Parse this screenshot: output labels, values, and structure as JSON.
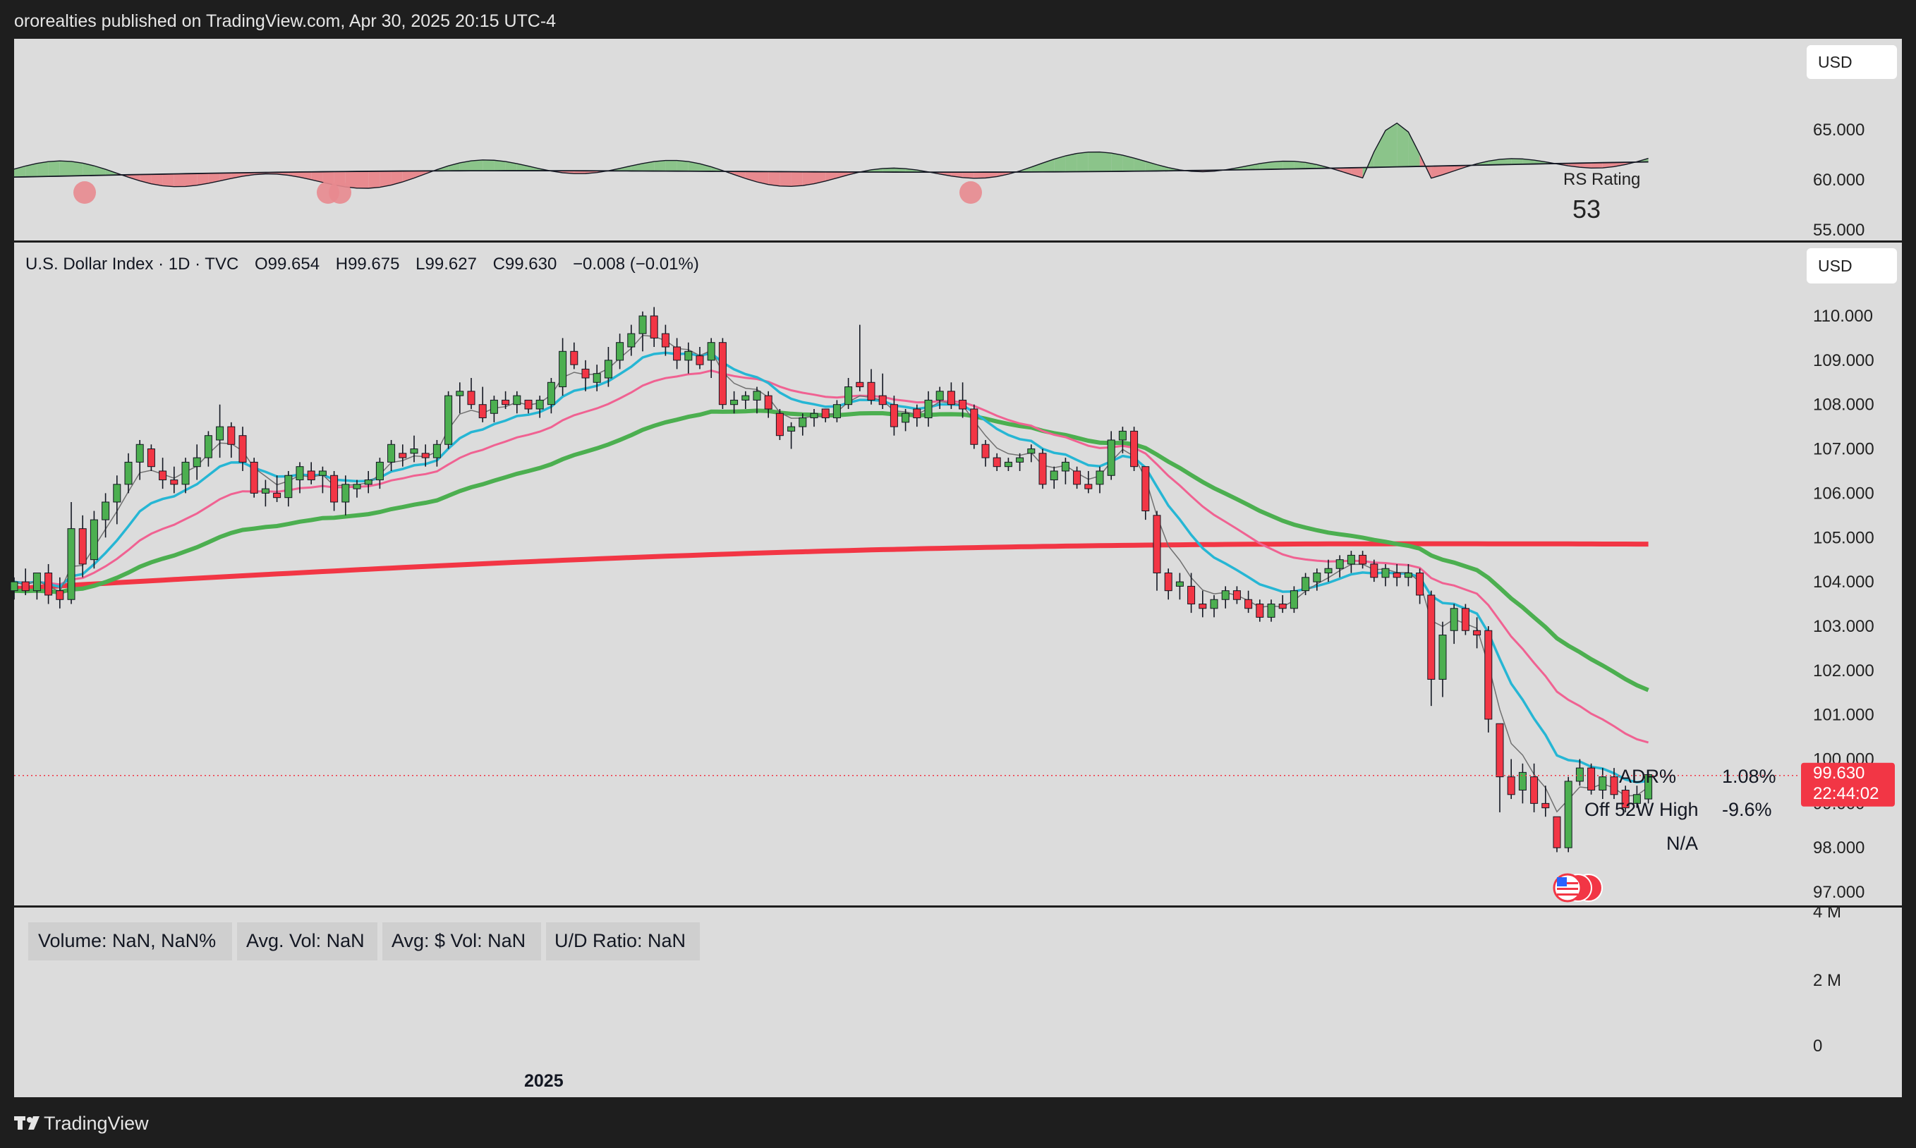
{
  "header": {
    "publisher": "ororealties published on TradingView.com, Apr 30, 2025 20:15 UTC-4"
  },
  "footer": {
    "brand": "TradingView",
    "logo_icon": "tradingview-logo-icon"
  },
  "colors": {
    "background": "#dcdcdc",
    "frame": "#1e1e1e",
    "up": "#4caf50",
    "down": "#f23645",
    "sma200": "#f23645",
    "sma50": "#4caf50",
    "ema21": "#f06292",
    "ema10": "#26b6d4",
    "ema5": "#707070",
    "stop": "#26b6d4",
    "rs_up": "#8bc48a",
    "rs_down": "#e88a8f",
    "price_tag": "#f23645"
  },
  "rs_panel": {
    "currency": "USD",
    "label": "RS Rating",
    "value": "53",
    "ticks": [
      "65.000",
      "60.000",
      "55.000"
    ]
  },
  "main_panel": {
    "legend": {
      "symbol": "U.S. Dollar Index · 1D · TVC",
      "open": "O99.654",
      "high": "H99.675",
      "low": "L99.627",
      "close": "C99.630",
      "change": "−0.008 (−0.01%)"
    },
    "currency": "USD",
    "price_ticks": [
      "110.000",
      "109.000",
      "108.000",
      "107.000",
      "106.000",
      "105.000",
      "104.000",
      "103.000",
      "102.000",
      "101.000",
      "100.000",
      "99.000",
      "98.000",
      "97.000"
    ],
    "last_price": "99.630",
    "countdown": "22:44:02",
    "stats": [
      {
        "label": "ADR%",
        "value": "1.08%"
      },
      {
        "label": "Off 52W High",
        "value": "-9.6%"
      },
      {
        "label": "",
        "value": "N/A"
      }
    ],
    "flag_icon": "us-flag-icon"
  },
  "volume_panel": {
    "boxes": [
      "Volume: NaN, NaN%",
      "Avg. Vol: NaN",
      "Avg: $ Vol: NaN",
      "U/D Ratio: NaN"
    ],
    "ticks": [
      "4 M",
      "2 M",
      "0"
    ]
  },
  "x_axis": {
    "labels": [
      "2025"
    ]
  },
  "chart_data": {
    "type": "candlestick",
    "title": "U.S. Dollar Index · 1D · TVC",
    "ylim": [
      96.7,
      110.6
    ],
    "ohlc_sample": [
      [
        103.8,
        104.1,
        103.6,
        104.0
      ],
      [
        104.0,
        104.3,
        103.7,
        103.8
      ],
      [
        103.8,
        104.2,
        103.6,
        104.2
      ],
      [
        104.2,
        104.4,
        103.5,
        103.7
      ],
      [
        103.8,
        104.1,
        103.4,
        103.6
      ],
      [
        103.6,
        105.8,
        103.5,
        105.2
      ],
      [
        105.2,
        105.5,
        104.1,
        104.4
      ],
      [
        104.5,
        105.6,
        104.3,
        105.4
      ],
      [
        105.4,
        106.0,
        105.0,
        105.8
      ],
      [
        105.8,
        106.4,
        105.3,
        106.2
      ],
      [
        106.2,
        106.9,
        106.0,
        106.7
      ],
      [
        106.7,
        107.2,
        106.3,
        107.1
      ],
      [
        107.0,
        107.1,
        106.5,
        106.6
      ],
      [
        106.5,
        106.8,
        106.1,
        106.3
      ],
      [
        106.3,
        106.6,
        106.0,
        106.2
      ],
      [
        106.2,
        106.8,
        106.0,
        106.7
      ],
      [
        106.6,
        107.1,
        106.3,
        106.8
      ],
      [
        106.8,
        107.4,
        106.6,
        107.3
      ],
      [
        107.2,
        108.0,
        106.8,
        107.5
      ],
      [
        107.5,
        107.6,
        106.8,
        107.1
      ],
      [
        107.3,
        107.5,
        106.5,
        106.7
      ],
      [
        106.7,
        106.8,
        105.9,
        106.0
      ],
      [
        106.0,
        106.3,
        105.7,
        106.1
      ],
      [
        106.0,
        106.4,
        105.8,
        105.9
      ],
      [
        105.9,
        106.5,
        105.7,
        106.4
      ],
      [
        106.3,
        106.7,
        106.0,
        106.6
      ],
      [
        106.5,
        106.7,
        106.2,
        106.3
      ],
      [
        106.4,
        106.6,
        106.0,
        106.5
      ],
      [
        106.4,
        106.5,
        105.6,
        105.8
      ],
      [
        105.8,
        106.4,
        105.5,
        106.2
      ],
      [
        106.1,
        106.3,
        105.9,
        106.2
      ],
      [
        106.2,
        106.5,
        106.0,
        106.3
      ],
      [
        106.3,
        106.8,
        106.1,
        106.7
      ],
      [
        106.7,
        107.2,
        106.5,
        107.1
      ],
      [
        106.9,
        107.1,
        106.6,
        106.8
      ],
      [
        106.9,
        107.3,
        106.7,
        107.0
      ],
      [
        106.9,
        107.1,
        106.6,
        106.8
      ],
      [
        106.8,
        107.2,
        106.6,
        107.1
      ],
      [
        107.1,
        108.3,
        107.0,
        108.2
      ],
      [
        108.2,
        108.5,
        107.8,
        108.3
      ],
      [
        108.3,
        108.6,
        107.9,
        108.0
      ],
      [
        108.0,
        108.4,
        107.6,
        107.7
      ],
      [
        107.8,
        108.2,
        107.6,
        108.1
      ],
      [
        108.1,
        108.3,
        107.9,
        108.0
      ],
      [
        108.0,
        108.3,
        107.8,
        108.2
      ],
      [
        108.1,
        108.1,
        107.8,
        107.9
      ],
      [
        107.9,
        108.2,
        107.7,
        108.1
      ],
      [
        108.0,
        108.6,
        107.8,
        108.5
      ],
      [
        108.4,
        109.5,
        108.2,
        109.2
      ],
      [
        109.2,
        109.4,
        108.8,
        108.9
      ],
      [
        108.8,
        109.0,
        108.3,
        108.6
      ],
      [
        108.5,
        108.9,
        108.3,
        108.7
      ],
      [
        108.6,
        109.3,
        108.4,
        109.0
      ],
      [
        109.0,
        109.6,
        108.8,
        109.4
      ],
      [
        109.3,
        109.8,
        109.1,
        109.6
      ],
      [
        109.6,
        110.1,
        109.2,
        110.0
      ],
      [
        110.0,
        110.2,
        109.3,
        109.5
      ],
      [
        109.6,
        109.8,
        109.1,
        109.3
      ],
      [
        109.3,
        109.5,
        108.8,
        109.0
      ],
      [
        109.0,
        109.4,
        108.7,
        109.2
      ],
      [
        109.1,
        109.3,
        108.8,
        108.9
      ],
      [
        109.0,
        109.5,
        108.6,
        109.4
      ],
      [
        109.4,
        109.5,
        107.9,
        108.0
      ],
      [
        108.0,
        108.3,
        107.8,
        108.1
      ],
      [
        108.1,
        108.3,
        107.9,
        108.2
      ],
      [
        108.1,
        108.4,
        107.8,
        108.3
      ],
      [
        108.2,
        108.3,
        107.7,
        107.9
      ],
      [
        107.8,
        107.9,
        107.2,
        107.3
      ],
      [
        107.4,
        107.6,
        107.0,
        107.5
      ],
      [
        107.5,
        107.8,
        107.3,
        107.7
      ],
      [
        107.7,
        107.9,
        107.5,
        107.8
      ],
      [
        107.9,
        107.9,
        107.6,
        107.7
      ],
      [
        107.7,
        108.1,
        107.6,
        108.0
      ],
      [
        108.0,
        108.6,
        107.9,
        108.4
      ],
      [
        108.5,
        109.8,
        108.3,
        108.4
      ],
      [
        108.5,
        108.8,
        108.0,
        108.1
      ],
      [
        108.2,
        108.7,
        107.9,
        108.0
      ],
      [
        108.0,
        108.2,
        107.3,
        107.5
      ],
      [
        107.6,
        107.9,
        107.4,
        107.8
      ],
      [
        107.9,
        108.0,
        107.5,
        107.7
      ],
      [
        107.7,
        108.3,
        107.5,
        108.1
      ],
      [
        108.1,
        108.4,
        107.9,
        108.3
      ],
      [
        108.3,
        108.5,
        107.9,
        108.0
      ],
      [
        108.1,
        108.5,
        107.7,
        107.9
      ],
      [
        107.9,
        108.0,
        107.0,
        107.1
      ],
      [
        107.1,
        107.2,
        106.6,
        106.8
      ],
      [
        106.8,
        106.9,
        106.5,
        106.6
      ],
      [
        106.6,
        106.8,
        106.5,
        106.7
      ],
      [
        106.7,
        106.9,
        106.5,
        106.8
      ],
      [
        106.9,
        107.1,
        106.7,
        107.0
      ],
      [
        106.9,
        107.0,
        106.1,
        106.2
      ],
      [
        106.3,
        106.6,
        106.1,
        106.5
      ],
      [
        106.5,
        106.8,
        106.2,
        106.7
      ],
      [
        106.5,
        106.6,
        106.1,
        106.2
      ],
      [
        106.2,
        106.5,
        106.0,
        106.1
      ],
      [
        106.2,
        106.6,
        106.0,
        106.5
      ],
      [
        106.4,
        107.4,
        106.3,
        107.2
      ],
      [
        107.2,
        107.5,
        106.9,
        107.4
      ],
      [
        107.4,
        107.5,
        106.5,
        106.6
      ],
      [
        106.6,
        106.6,
        105.4,
        105.6
      ],
      [
        105.5,
        105.6,
        103.8,
        104.2
      ],
      [
        104.2,
        104.3,
        103.6,
        103.8
      ],
      [
        103.9,
        104.2,
        103.6,
        104.0
      ],
      [
        103.9,
        104.2,
        103.3,
        103.5
      ],
      [
        103.5,
        103.8,
        103.2,
        103.4
      ],
      [
        103.4,
        103.7,
        103.2,
        103.6
      ],
      [
        103.6,
        103.9,
        103.4,
        103.8
      ],
      [
        103.8,
        103.9,
        103.5,
        103.6
      ],
      [
        103.6,
        103.8,
        103.3,
        103.4
      ],
      [
        103.5,
        103.6,
        103.1,
        103.2
      ],
      [
        103.2,
        103.6,
        103.1,
        103.5
      ],
      [
        103.5,
        103.7,
        103.3,
        103.4
      ],
      [
        103.4,
        103.9,
        103.3,
        103.8
      ],
      [
        103.8,
        104.2,
        103.7,
        104.1
      ],
      [
        104.0,
        104.3,
        103.8,
        104.2
      ],
      [
        104.2,
        104.5,
        104.0,
        104.3
      ],
      [
        104.3,
        104.6,
        104.1,
        104.5
      ],
      [
        104.4,
        104.7,
        104.2,
        104.6
      ],
      [
        104.6,
        104.7,
        104.3,
        104.4
      ],
      [
        104.4,
        104.5,
        104.0,
        104.1
      ],
      [
        104.1,
        104.4,
        103.9,
        104.3
      ],
      [
        104.2,
        104.4,
        103.9,
        104.1
      ],
      [
        104.1,
        104.4,
        103.9,
        104.2
      ],
      [
        104.2,
        104.3,
        103.5,
        103.7
      ],
      [
        103.7,
        103.8,
        101.2,
        101.8
      ],
      [
        101.8,
        103.1,
        101.4,
        102.8
      ],
      [
        102.9,
        103.5,
        102.6,
        103.4
      ],
      [
        103.4,
        103.5,
        102.8,
        102.9
      ],
      [
        102.9,
        103.2,
        102.5,
        102.8
      ],
      [
        102.9,
        103.0,
        100.6,
        100.9
      ],
      [
        100.8,
        100.8,
        98.8,
        99.6
      ],
      [
        99.6,
        100.0,
        99.1,
        99.2
      ],
      [
        99.3,
        99.9,
        99.0,
        99.7
      ],
      [
        99.6,
        99.9,
        98.8,
        99.0
      ],
      [
        99.0,
        99.4,
        98.7,
        98.9
      ],
      [
        98.7,
        98.7,
        97.9,
        98.0
      ],
      [
        98.0,
        99.6,
        97.9,
        99.5
      ],
      [
        99.5,
        100.0,
        99.4,
        99.8
      ],
      [
        99.8,
        99.9,
        99.2,
        99.3
      ],
      [
        99.3,
        99.8,
        99.1,
        99.6
      ],
      [
        99.6,
        99.8,
        99.1,
        99.2
      ],
      [
        99.3,
        99.4,
        98.8,
        98.9
      ],
      [
        99.0,
        99.4,
        98.9,
        99.2
      ],
      [
        99.1,
        99.7,
        99.0,
        99.65
      ]
    ],
    "series": [
      {
        "name": "",
        "values": []
      }
    ]
  }
}
